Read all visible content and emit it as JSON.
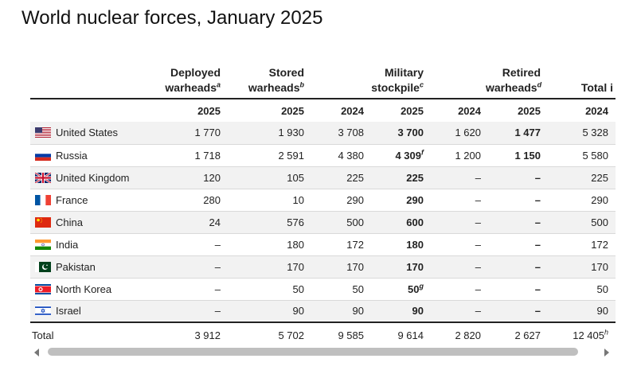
{
  "title": "World nuclear forces, January 2025",
  "headers": {
    "deployed": {
      "line1": "Deployed",
      "line2": "warheads",
      "note": "a"
    },
    "stored": {
      "line1": "Stored",
      "line2": "warheads",
      "note": "b"
    },
    "military": {
      "line1": "Military",
      "line2": "stockpile",
      "note": "c"
    },
    "retired": {
      "line1": "Retired",
      "line2": "warheads",
      "note": "d"
    },
    "total": {
      "line1": "Total i"
    }
  },
  "years": [
    "2025",
    "2025",
    "2024",
    "2025",
    "2024",
    "2025",
    "2024"
  ],
  "rows": [
    {
      "country": "United States",
      "flag": "us-flag-icon",
      "deployed_2025": "1 770",
      "stored_2025": "1 930",
      "military_2024": "3 708",
      "military_2025": "3 700",
      "military_note": "",
      "retired_2024": "1 620",
      "retired_2025": "1 477",
      "total_2024": "5 328"
    },
    {
      "country": "Russia",
      "flag": "russia-flag-icon",
      "deployed_2025": "1 718",
      "stored_2025": "2 591",
      "military_2024": "4 380",
      "military_2025": "4 309",
      "military_note": "f",
      "retired_2024": "1 200",
      "retired_2025": "1 150",
      "total_2024": "5 580"
    },
    {
      "country": "United Kingdom",
      "flag": "uk-flag-icon",
      "deployed_2025": "120",
      "stored_2025": "105",
      "military_2024": "225",
      "military_2025": "225",
      "military_note": "",
      "retired_2024": "–",
      "retired_2025": "–",
      "total_2024": "225"
    },
    {
      "country": "France",
      "flag": "france-flag-icon",
      "deployed_2025": "280",
      "stored_2025": "10",
      "military_2024": "290",
      "military_2025": "290",
      "military_note": "",
      "retired_2024": "–",
      "retired_2025": "–",
      "total_2024": "290"
    },
    {
      "country": "China",
      "flag": "china-flag-icon",
      "deployed_2025": "24",
      "stored_2025": "576",
      "military_2024": "500",
      "military_2025": "600",
      "military_note": "",
      "retired_2024": "–",
      "retired_2025": "–",
      "total_2024": "500"
    },
    {
      "country": "India",
      "flag": "india-flag-icon",
      "deployed_2025": "–",
      "stored_2025": "180",
      "military_2024": "172",
      "military_2025": "180",
      "military_note": "",
      "retired_2024": "–",
      "retired_2025": "–",
      "total_2024": "172"
    },
    {
      "country": "Pakistan",
      "flag": "pakistan-flag-icon",
      "deployed_2025": "–",
      "stored_2025": "170",
      "military_2024": "170",
      "military_2025": "170",
      "military_note": "",
      "retired_2024": "–",
      "retired_2025": "–",
      "total_2024": "170"
    },
    {
      "country": "North Korea",
      "flag": "north-korea-flag-icon",
      "deployed_2025": "–",
      "stored_2025": "50",
      "military_2024": "50",
      "military_2025": "50",
      "military_note": "g",
      "retired_2024": "–",
      "retired_2025": "–",
      "total_2024": "50"
    },
    {
      "country": "Israel",
      "flag": "israel-flag-icon",
      "deployed_2025": "–",
      "stored_2025": "90",
      "military_2024": "90",
      "military_2025": "90",
      "military_note": "",
      "retired_2024": "–",
      "retired_2025": "–",
      "total_2024": "90"
    }
  ],
  "total": {
    "label": "Total",
    "deployed_2025": "3 912",
    "stored_2025": "5 702",
    "military_2024": "9 585",
    "military_2025": "9 614",
    "retired_2024": "2 820",
    "retired_2025": "2 627",
    "total_2024": "12 405",
    "total_note": "h"
  },
  "scrollbar": {
    "left_icon": "arrow-left-icon",
    "right_icon": "arrow-right-icon"
  }
}
